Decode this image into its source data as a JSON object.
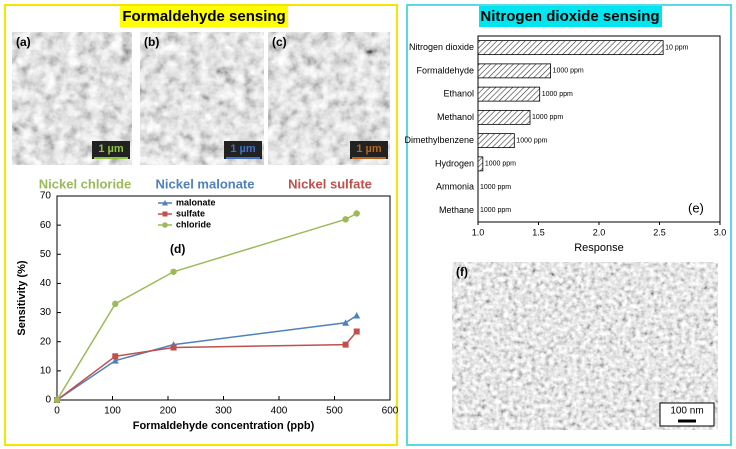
{
  "panels": {
    "left_title": "Formaldehyde sensing",
    "right_title": "Nitrogen dioxide sensing",
    "images": [
      {
        "label": "(a)",
        "scale": "1 µm",
        "color": "#8dc63f"
      },
      {
        "label": "(b)",
        "scale": "1 µm",
        "color": "#4472c4"
      },
      {
        "label": "(c)",
        "scale": "1 µm",
        "color": "#b5651d"
      },
      {
        "label": "(f)",
        "scale": "100 nm",
        "color": "#000000"
      }
    ],
    "captions": [
      {
        "text": "Nickel chloride",
        "color": "#9bbb59"
      },
      {
        "text": "Nickel malonate",
        "color": "#4f81bd"
      },
      {
        "text": "Nickel sulfate",
        "color": "#c0504d"
      }
    ]
  },
  "chart_data": [
    {
      "type": "line",
      "label": "(d)",
      "xlabel": "Formaldehyde concentration (ppb)",
      "ylabel": "Sensitivity (%)",
      "x": [
        0,
        105,
        210,
        520,
        540
      ],
      "xlim": [
        0,
        600
      ],
      "xticks": [
        0,
        100,
        200,
        300,
        400,
        500,
        600
      ],
      "ylim": [
        0,
        70
      ],
      "yticks": [
        0,
        10,
        20,
        30,
        40,
        50,
        60,
        70
      ],
      "series": [
        {
          "name": "malonate",
          "color": "#4f81bd",
          "marker": "triangle",
          "values": [
            0,
            13.5,
            19,
            26.5,
            29
          ]
        },
        {
          "name": "sulfate",
          "color": "#c0504d",
          "marker": "square",
          "values": [
            0,
            15,
            18,
            19,
            23.5
          ]
        },
        {
          "name": "chloride",
          "color": "#9bbb59",
          "marker": "circle",
          "values": [
            0,
            33,
            44,
            62,
            64
          ]
        }
      ]
    },
    {
      "type": "bar",
      "orientation": "horizontal",
      "label": "(e)",
      "xlabel": "Response",
      "categories": [
        "Nitrogen dioxide",
        "Formaldehyde",
        "Ethanol",
        "Methanol",
        "Dimethylbenzene",
        "Hydrogen",
        "Ammonia",
        "Methane"
      ],
      "values": [
        2.53,
        1.6,
        1.51,
        1.43,
        1.3,
        1.04,
        1.0,
        1.0
      ],
      "annotations": [
        "10 ppm",
        "1000 ppm",
        "1000 ppm",
        "1000 ppm",
        "1000 ppm",
        "1000 ppm",
        "1000 ppm",
        "1000 ppm"
      ],
      "xlim": [
        1,
        3
      ],
      "xticks": [
        {
          "value": 1,
          "label": "1.0"
        },
        1.5,
        {
          "value": 2,
          "label": "2.0"
        },
        2.5,
        {
          "value": 3,
          "label": "3.0"
        }
      ]
    }
  ]
}
